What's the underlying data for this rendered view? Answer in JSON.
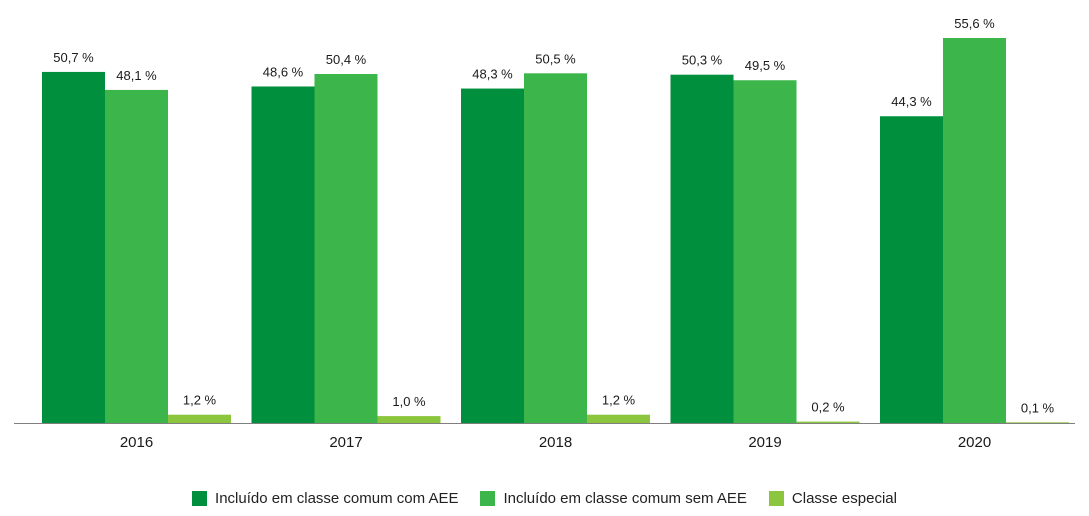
{
  "chart_data": {
    "type": "bar",
    "categories": [
      "2016",
      "2017",
      "2018",
      "2019",
      "2020"
    ],
    "series": [
      {
        "name": "Incluído em classe comum com AEE",
        "color": "#008f3c",
        "values": [
          50.7,
          48.6,
          48.3,
          50.3,
          44.3
        ],
        "labels": [
          "50,7 %",
          "48,6 %",
          "48,3 %",
          "50,3 %",
          "44,3 %"
        ]
      },
      {
        "name": "Incluído em classe comum sem AEE",
        "color": "#3cb64a",
        "values": [
          48.1,
          50.4,
          50.5,
          49.5,
          55.6
        ],
        "labels": [
          "48,1 %",
          "50,4 %",
          "50,5 %",
          "49,5 %",
          "55,6 %"
        ]
      },
      {
        "name": "Classe especial",
        "color": "#8cc63f",
        "values": [
          1.2,
          1.0,
          1.2,
          0.2,
          0.1
        ],
        "labels": [
          "1,2 %",
          "1,0 %",
          "1,2 %",
          "0,2 %",
          "0,1 %"
        ]
      }
    ],
    "ylim": [
      0,
      60
    ],
    "grid": false,
    "legend_position": "bottom"
  }
}
